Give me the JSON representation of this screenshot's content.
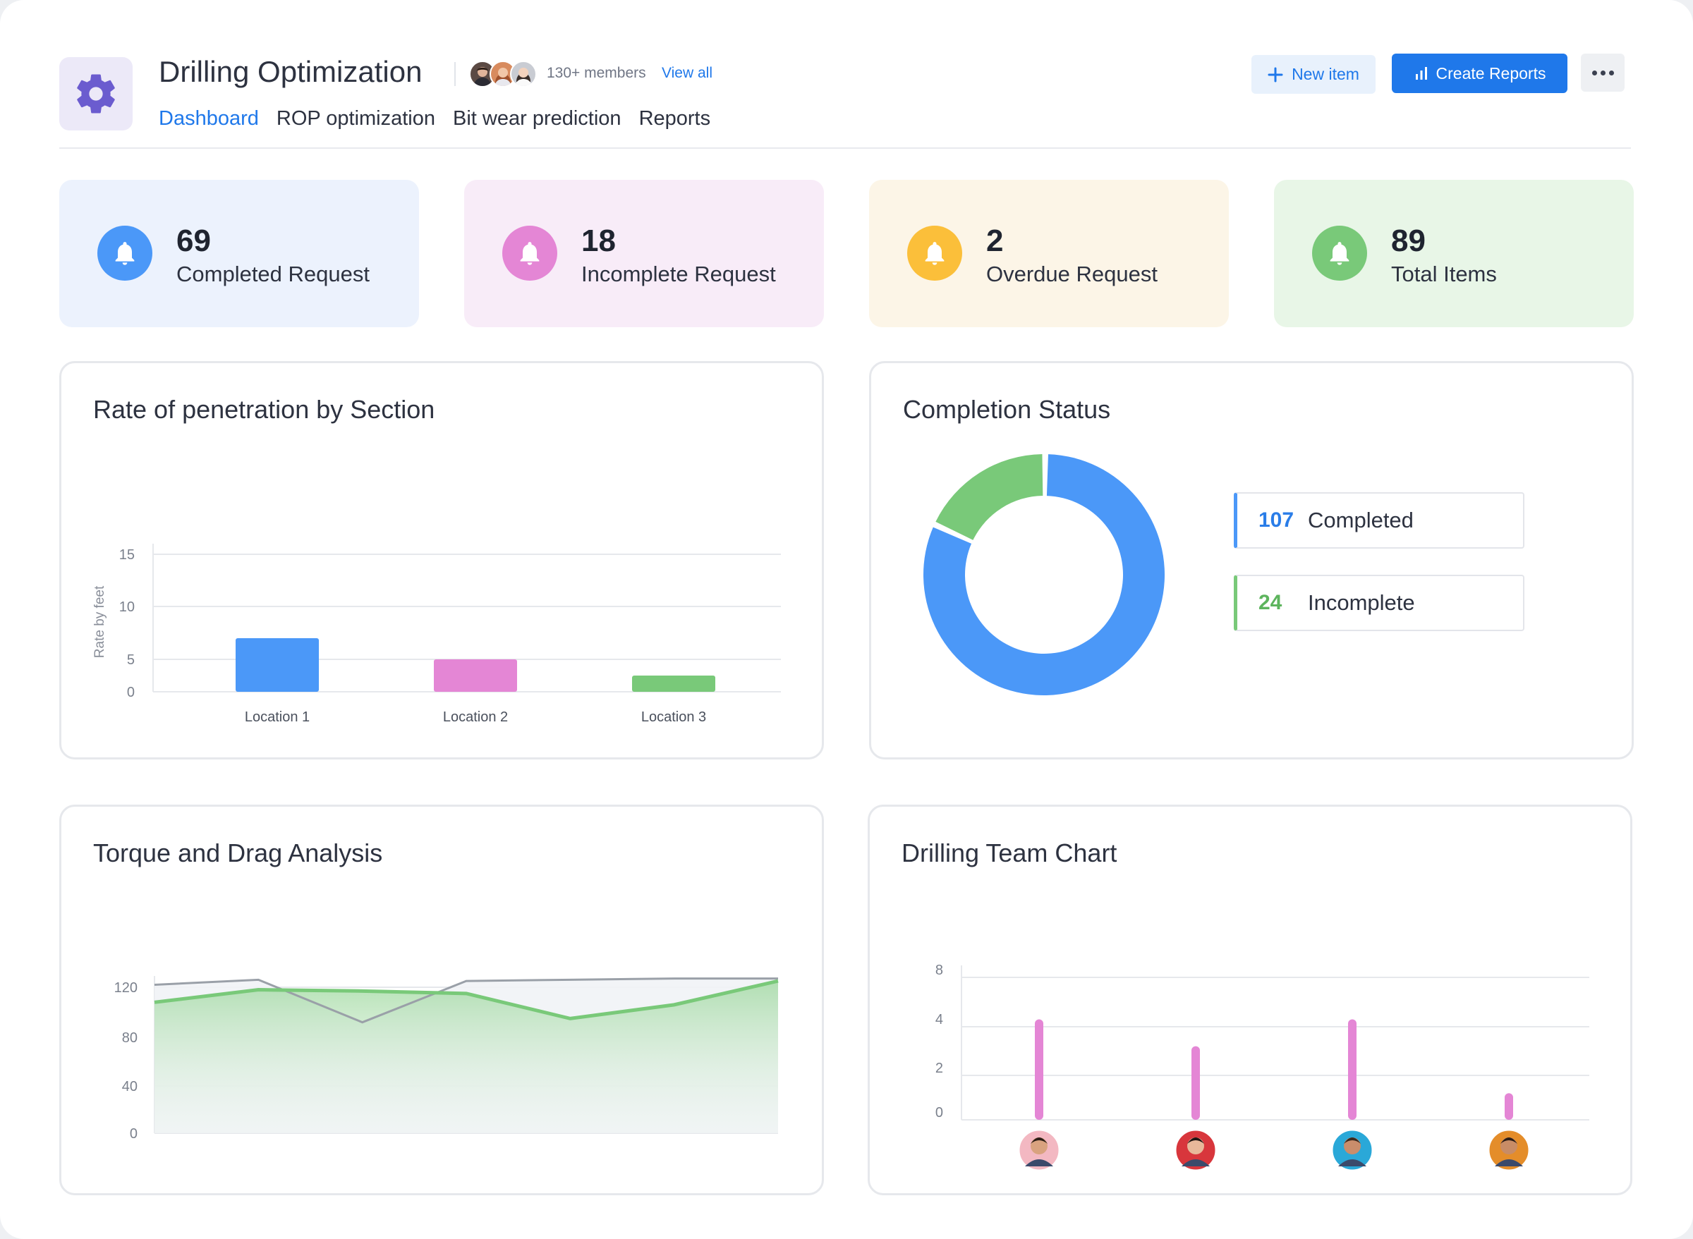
{
  "header": {
    "title": "Drilling Optimization",
    "members_text": "130+ members",
    "view_all": "View all",
    "tabs": [
      {
        "label": "Dashboard",
        "active": true
      },
      {
        "label": "ROP optimization",
        "active": false
      },
      {
        "label": "Bit wear prediction",
        "active": false
      },
      {
        "label": "Reports",
        "active": false
      }
    ],
    "new_item_label": "New item",
    "create_reports_label": "Create Reports",
    "app_icon": "gear-icon",
    "accent_color": "#1f78ea"
  },
  "stats": [
    {
      "value": "69",
      "label": "Completed Request",
      "bg": "#ecf2fd",
      "icon_color": "#4b98f8"
    },
    {
      "value": "18",
      "label": "Incomplete Request",
      "bg": "#f8ecf8",
      "icon_color": "#e486d5"
    },
    {
      "value": "2",
      "label": "Overdue Request",
      "bg": "#fcf5e7",
      "icon_color": "#fbbf3a"
    },
    {
      "value": "89",
      "label": "Total Items",
      "bg": "#e8f6e7",
      "icon_color": "#79c979"
    }
  ],
  "panels": {
    "rop_title": "Rate of penetration by Section",
    "completion_title": "Completion Status",
    "torque_title": "Torque and Drag Analysis",
    "team_title": "Drilling Team Chart"
  },
  "chart_data": [
    {
      "type": "bar",
      "title": "Rate of penetration by Section",
      "ylabel": "Rate by feet",
      "xlabel": "",
      "categories": [
        "Location 1",
        "Location 2",
        "Location 3"
      ],
      "values": [
        7,
        5,
        2.5
      ],
      "colors": [
        "#4b98f8",
        "#e486d5",
        "#79c979"
      ],
      "yticks": [
        0,
        5,
        10,
        15
      ],
      "ylim": [
        0,
        15
      ],
      "grid": true
    },
    {
      "type": "pie",
      "title": "Completion Status",
      "donut": true,
      "slices": [
        {
          "label": "Completed",
          "value": 107,
          "color": "#4b98f8"
        },
        {
          "label": "Incomplete",
          "value": 24,
          "color": "#79c979"
        }
      ],
      "legend_placement": "right"
    },
    {
      "type": "area",
      "title": "Torque and Drag Analysis",
      "yticks": [
        0,
        40,
        80,
        120
      ],
      "ylim": [
        0,
        120
      ],
      "x": [
        0,
        1,
        2,
        3,
        4,
        5,
        6
      ],
      "series": [
        {
          "values": [
            108,
            118,
            117,
            115,
            95,
            106,
            125
          ],
          "color": "#79c979",
          "fill": true
        },
        {
          "values": [
            122,
            126,
            92,
            125,
            126,
            127,
            127
          ],
          "color": "#9aa0a8",
          "fill": false
        }
      ],
      "grid": true
    },
    {
      "type": "bar",
      "title": "Drilling Team Chart",
      "yticks": [
        0,
        2,
        4,
        8
      ],
      "categories": [
        "member-1",
        "member-2",
        "member-3",
        "member-4"
      ],
      "values": [
        4.6,
        3.2,
        4.6,
        1.2
      ],
      "color": "#e486d5",
      "grid": true
    }
  ]
}
